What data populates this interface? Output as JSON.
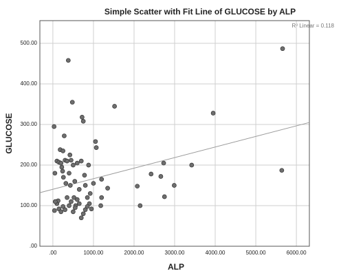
{
  "chart_data": {
    "type": "scatter",
    "title": "Simple Scatter with Fit Line of GLUCOSE by ALP",
    "x_label": "ALP",
    "y_label": "GLUCOSE",
    "annotation": "R² Linear = 0.118",
    "x": [
      30,
      50,
      40,
      60,
      100,
      150,
      180,
      200,
      220,
      240,
      260,
      280,
      300,
      320,
      350,
      380,
      400,
      420,
      430,
      450,
      480,
      500,
      520,
      540,
      560,
      600,
      650,
      700,
      720,
      750,
      780,
      800,
      850,
      880,
      900,
      920,
      1050,
      1070,
      1000,
      1200,
      1200,
      1180,
      1350,
      1520,
      100,
      130,
      150,
      200,
      250,
      300,
      350,
      400,
      450,
      500,
      550,
      600,
      650,
      700,
      750,
      800,
      850,
      950,
      2080,
      2150,
      2420,
      2660,
      2730,
      2750,
      2990,
      3420,
      3950,
      5660,
      5640,
      60,
      250
    ],
    "values": [
      295,
      180,
      88,
      110,
      210,
      207,
      238,
      205,
      195,
      185,
      170,
      272,
      212,
      155,
      210,
      458,
      180,
      225,
      150,
      212,
      355,
      200,
      120,
      160,
      100,
      205,
      140,
      210,
      318,
      308,
      175,
      150,
      120,
      200,
      105,
      130,
      258,
      243,
      155,
      165,
      120,
      100,
      143,
      345,
      105,
      112,
      92,
      85,
      98,
      90,
      120,
      100,
      110,
      85,
      95,
      115,
      105,
      70,
      80,
      90,
      98,
      92,
      148,
      100,
      178,
      172,
      205,
      122,
      150,
      200,
      328,
      487,
      187,
      110,
      235
    ],
    "point_color": "#6e6e6e",
    "fit_line": {
      "x": [
        -320,
        6320
      ],
      "y": [
        132,
        305
      ],
      "color": "#9a9a9a"
    },
    "xlim": [
      -320,
      6320
    ],
    "ylim": [
      0,
      556
    ],
    "xticks": [
      {
        "value": 0,
        "label": ".00"
      },
      {
        "value": 1000,
        "label": "1000.00"
      },
      {
        "value": 2000,
        "label": "2000.00"
      },
      {
        "value": 3000,
        "label": "3000.00"
      },
      {
        "value": 4000,
        "label": "4000.00"
      },
      {
        "value": 5000,
        "label": "5000.00"
      },
      {
        "value": 6000,
        "label": "6000.00"
      }
    ],
    "yticks": [
      {
        "value": 0,
        "label": ".00"
      },
      {
        "value": 100,
        "label": "100.00"
      },
      {
        "value": 200,
        "label": "200.00"
      },
      {
        "value": 300,
        "label": "300.00"
      },
      {
        "value": 400,
        "label": "400.00"
      },
      {
        "value": 500,
        "label": "500.00"
      }
    ],
    "grid": true
  }
}
